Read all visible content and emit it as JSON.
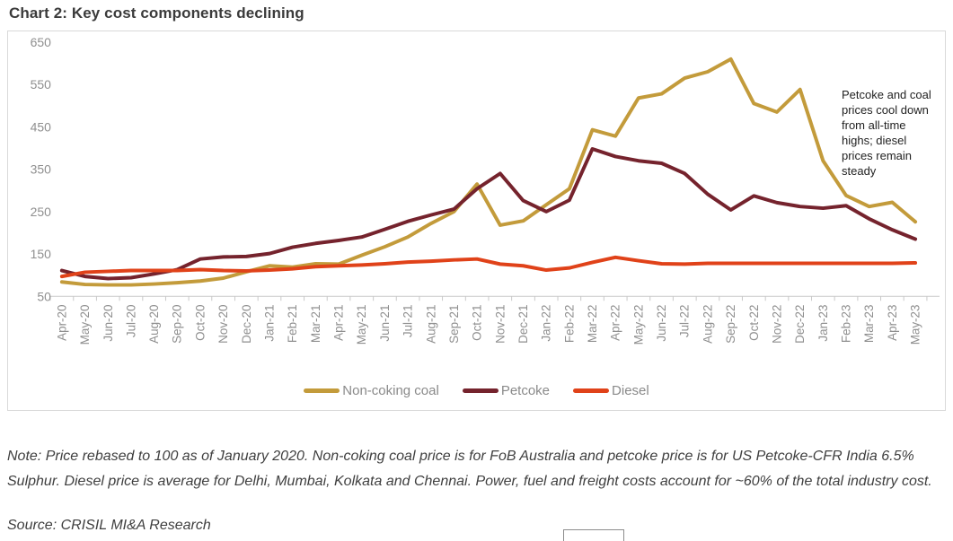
{
  "title": "Chart 2: Key cost components declining",
  "chart_data": {
    "type": "line",
    "categories": [
      "Apr-20",
      "May-20",
      "Jun-20",
      "Jul-20",
      "Aug-20",
      "Sep-20",
      "Oct-20",
      "Nov-20",
      "Dec-20",
      "Jan-21",
      "Feb-21",
      "Mar-21",
      "Apr-21",
      "May-21",
      "Jun-21",
      "Jul-21",
      "Aug-21",
      "Sep-21",
      "Oct-21",
      "Nov-21",
      "Dec-21",
      "Jan-22",
      "Feb-22",
      "Mar-22",
      "Apr-22",
      "May-22",
      "Jun-22",
      "Jul-22",
      "Aug-22",
      "Sep-22",
      "Oct-22",
      "Nov-22",
      "Dec-22",
      "Jan-23",
      "Feb-23",
      "Mar-23",
      "Apr-23",
      "May-23"
    ],
    "series": [
      {
        "name": "Non-coking coal",
        "color": "#C39B3B",
        "values": [
          84,
          78,
          77,
          77,
          79,
          82,
          86,
          93,
          108,
          122,
          119,
          127,
          126,
          147,
          167,
          190,
          222,
          250,
          315,
          218,
          228,
          266,
          304,
          443,
          428,
          518,
          528,
          565,
          580,
          610,
          505,
          485,
          538,
          370,
          288,
          262,
          272,
          226
        ]
      },
      {
        "name": "Petcoke",
        "color": "#75232D",
        "values": [
          111,
          97,
          92,
          94,
          103,
          113,
          138,
          143,
          144,
          151,
          166,
          175,
          182,
          190,
          208,
          227,
          242,
          256,
          304,
          340,
          276,
          250,
          277,
          398,
          380,
          370,
          364,
          340,
          291,
          254,
          287,
          271,
          262,
          258,
          264,
          233,
          207,
          185
        ]
      },
      {
        "name": "Diesel",
        "color": "#E04219",
        "values": [
          97,
          107,
          109,
          111,
          111,
          111,
          113,
          111,
          110,
          112,
          115,
          120,
          122,
          124,
          127,
          131,
          133,
          136,
          138,
          126,
          122,
          112,
          117,
          130,
          142,
          134,
          127,
          126,
          128,
          128,
          128,
          128,
          128,
          128,
          128,
          128,
          128,
          129
        ]
      }
    ],
    "ylim": [
      50,
      650
    ],
    "yticks": [
      650,
      550,
      450,
      350,
      250,
      150,
      50
    ],
    "grid": false,
    "legend_position": "bottom",
    "annotation": "Petcoke and coal prices cool down from all-time highs; diesel prices remain steady"
  },
  "note": "Note: Price rebased to 100 as of January 2020. Non-coking coal price is for FoB Australia and petcoke price is for US Petcoke-CFR India 6.5% Sulphur. Diesel price is average for Delhi, Mumbai, Kolkata and Chennai. Power, fuel and freight costs account for ~60% of the total industry cost.",
  "source": "Source: CRISIL MI&A Research",
  "colors": {
    "axis_text": "#8f8f8f",
    "axis_line": "#c9c9c9",
    "box_border": "#d9d9d9",
    "title_text": "#3b3b3b",
    "note_text": "#3f3f3f",
    "annotation_text": "#222222"
  }
}
